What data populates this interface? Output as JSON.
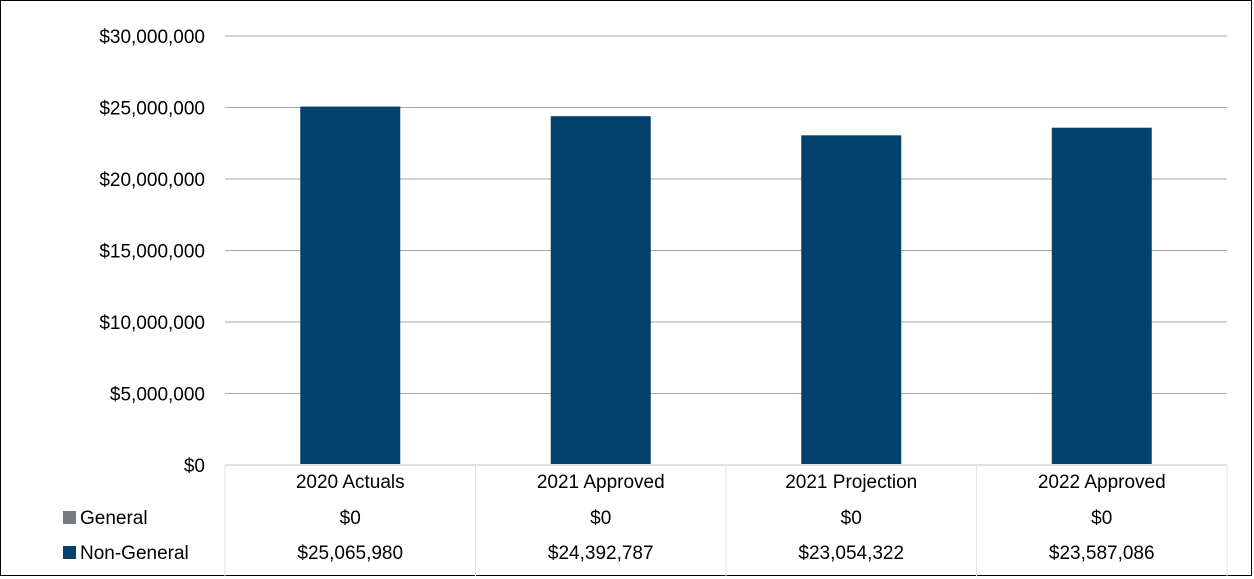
{
  "chart_data": {
    "type": "bar",
    "categories": [
      "2020 Actuals",
      "2021 Approved",
      "2021  Projection",
      "2022 Approved"
    ],
    "series": [
      {
        "name": "General",
        "values": [
          0,
          0,
          0,
          0
        ],
        "color": "#757B82"
      },
      {
        "name": "Non-General",
        "values": [
          25065980,
          24392787,
          23054322,
          23587086
        ],
        "color": "#02416B"
      }
    ],
    "table_values": [
      [
        "$0",
        "$0",
        "$0",
        "$0"
      ],
      [
        "$25,065,980",
        "$24,392,787",
        "$23,054,322",
        "$23,587,086"
      ]
    ],
    "yticks": [
      "$0",
      "$5,000,000",
      "$10,000,000",
      "$15,000,000",
      "$20,000,000",
      "$25,000,000",
      "$30,000,000"
    ],
    "ylim": [
      0,
      30000000
    ],
    "grid": true,
    "legend": "data-table",
    "stacked": true,
    "title": "",
    "xlabel": "",
    "ylabel": ""
  }
}
